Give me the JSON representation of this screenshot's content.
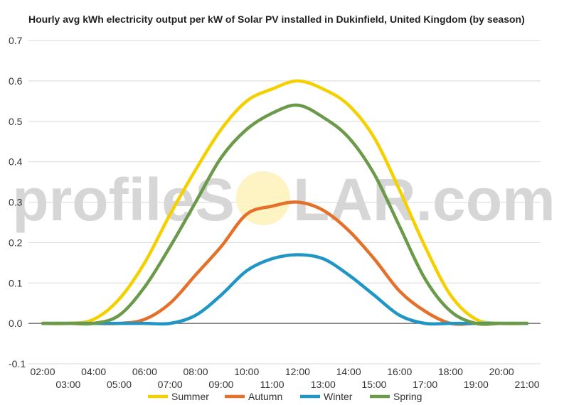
{
  "watermark": {
    "left": "profileS",
    "right": "LAR.com"
  },
  "chart_data": {
    "type": "line",
    "title": "Hourly avg kWh electricity output per kW of Solar PV installed in Dukinfield, United Kingdom (by season)",
    "xlabel": "",
    "ylabel": "",
    "x": [
      "02:00",
      "03:00",
      "04:00",
      "05:00",
      "06:00",
      "07:00",
      "08:00",
      "09:00",
      "10:00",
      "11:00",
      "12:00",
      "13:00",
      "14:00",
      "15:00",
      "16:00",
      "17:00",
      "18:00",
      "19:00",
      "20:00",
      "21:00"
    ],
    "ylim": [
      -0.1,
      0.7
    ],
    "yticks": [
      -0.1,
      0.0,
      0.1,
      0.2,
      0.3,
      0.4,
      0.5,
      0.6,
      0.7
    ],
    "grid": true,
    "legend": "bottom",
    "series": [
      {
        "name": "Summer",
        "color": "#f5d000",
        "values": [
          0.0,
          0.0,
          0.01,
          0.06,
          0.15,
          0.27,
          0.38,
          0.48,
          0.55,
          0.58,
          0.6,
          0.58,
          0.54,
          0.46,
          0.33,
          0.19,
          0.07,
          0.01,
          0.0,
          0.0
        ]
      },
      {
        "name": "Autumn",
        "color": "#e5702a",
        "values": [
          0.0,
          0.0,
          0.0,
          0.0,
          0.01,
          0.05,
          0.12,
          0.19,
          0.27,
          0.29,
          0.3,
          0.28,
          0.23,
          0.16,
          0.08,
          0.03,
          0.0,
          0.0,
          0.0,
          0.0
        ]
      },
      {
        "name": "Winter",
        "color": "#1f96c6",
        "values": [
          0.0,
          0.0,
          0.0,
          0.0,
          0.0,
          0.0,
          0.02,
          0.07,
          0.13,
          0.16,
          0.17,
          0.16,
          0.12,
          0.07,
          0.02,
          0.0,
          0.0,
          0.0,
          0.0,
          0.0
        ]
      },
      {
        "name": "Spring",
        "color": "#6b9a4b",
        "values": [
          0.0,
          0.0,
          0.0,
          0.02,
          0.09,
          0.19,
          0.3,
          0.41,
          0.48,
          0.52,
          0.54,
          0.51,
          0.46,
          0.37,
          0.24,
          0.11,
          0.03,
          0.0,
          0.0,
          0.0
        ]
      }
    ]
  }
}
